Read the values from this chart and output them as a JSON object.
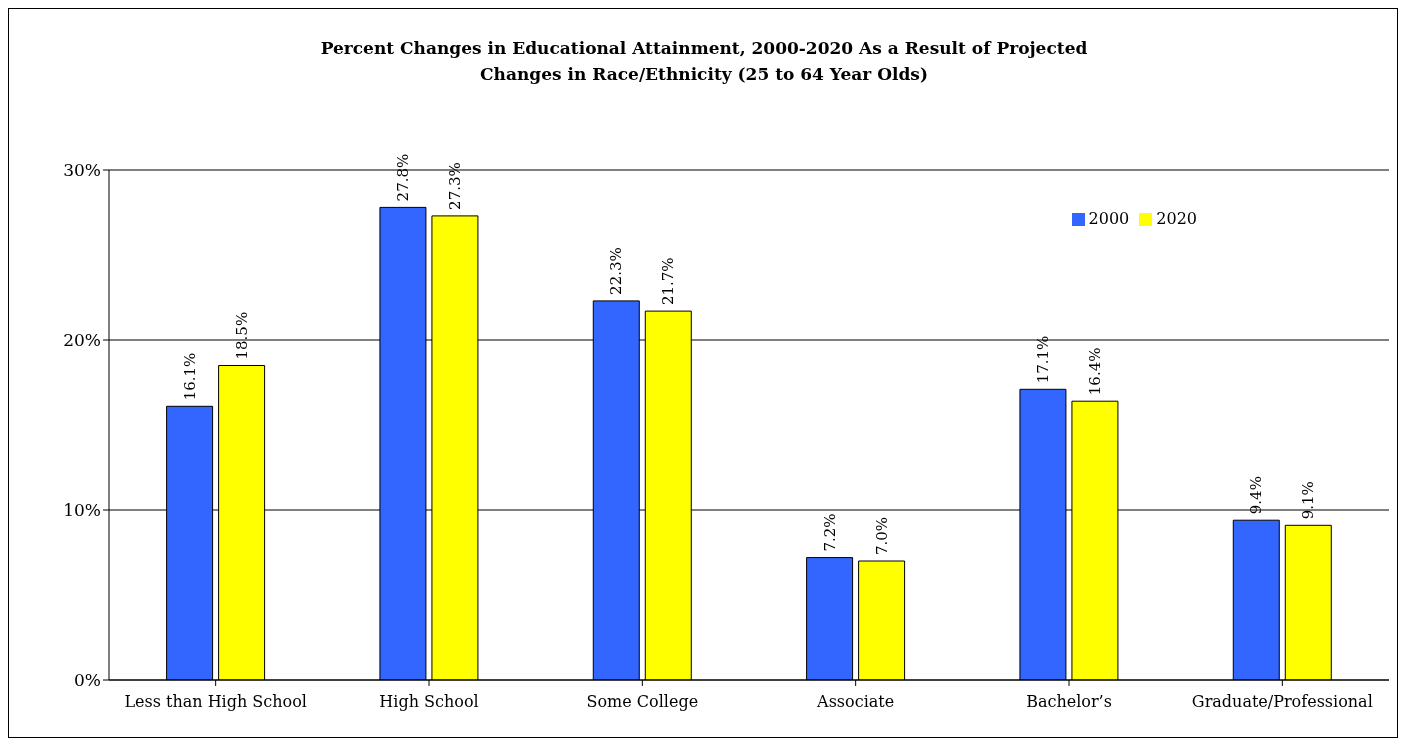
{
  "chart_data": {
    "type": "bar",
    "title": "Percent Changes in Educational Attainment, 2000-2020 As a Result of Projected Changes in Race/Ethnicity (25 to 64 Year Olds)",
    "categories": [
      "Less than High School",
      "High School",
      "Some College",
      "Associate",
      "Bachelor’s",
      "Graduate/Professional"
    ],
    "series": [
      {
        "name": "2000",
        "color": "#3366ff",
        "values": [
          16.1,
          27.8,
          22.3,
          7.2,
          17.1,
          9.4
        ],
        "value_labels": [
          "16.1%",
          "27.8%",
          "22.3%",
          "7.2%",
          "17.1%",
          "9.4%"
        ]
      },
      {
        "name": "2020",
        "color": "#ffff00",
        "values": [
          18.5,
          27.3,
          21.7,
          7.0,
          16.4,
          9.1
        ],
        "value_labels": [
          "18.5%",
          "27.3%",
          "21.7%",
          "7.0%",
          "16.4%",
          "9.1%"
        ]
      }
    ],
    "ylim": [
      0,
      30
    ],
    "yticks": [
      {
        "value": 0,
        "label": "0%"
      },
      {
        "value": 10,
        "label": "10%"
      },
      {
        "value": 20,
        "label": "20%"
      },
      {
        "value": 30,
        "label": "30%"
      }
    ],
    "grid": "y",
    "legend": "top right"
  }
}
